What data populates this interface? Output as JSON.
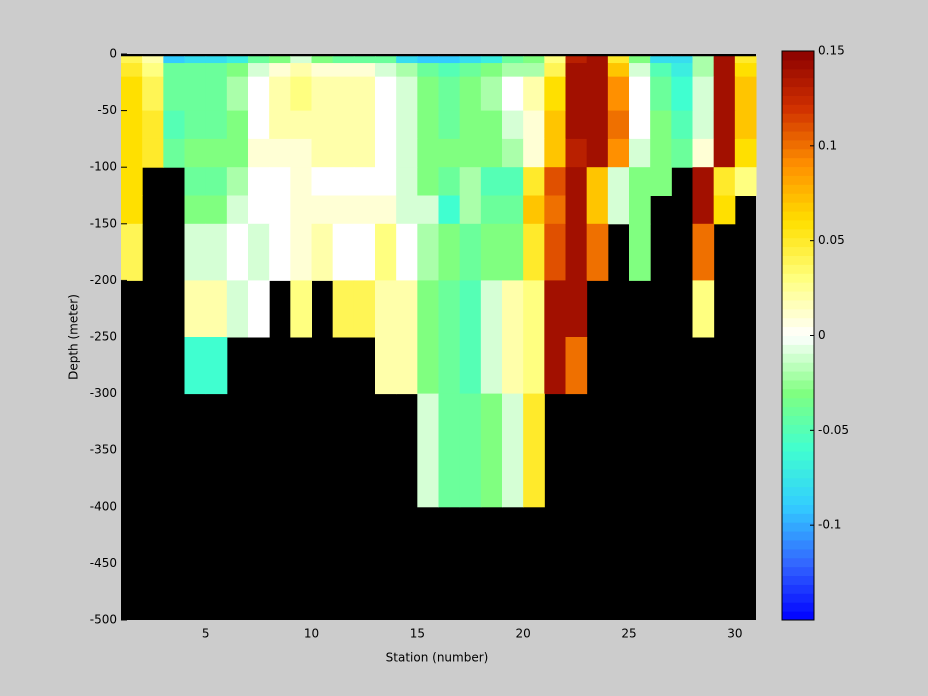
{
  "chart_data": {
    "type": "heatmap",
    "xlabel": "Station (number)",
    "ylabel": "Depth (meter)",
    "x": [
      1,
      2,
      3,
      4,
      5,
      6,
      7,
      8,
      9,
      10,
      11,
      12,
      13,
      14,
      15,
      16,
      17,
      18,
      19,
      20,
      21,
      22,
      23,
      24,
      25,
      26,
      27,
      28,
      29,
      30,
      31
    ],
    "y": [
      -2,
      -8,
      -20,
      -50,
      -75,
      -100,
      -125,
      -150,
      -200,
      -250,
      -300,
      -400
    ],
    "z": [
      [
        0.04,
        0.02,
        -0.09,
        -0.08,
        -0.08,
        -0.07,
        -0.04,
        -0.03,
        -0.01,
        -0.03,
        -0.04,
        -0.04,
        -0.04,
        -0.08,
        -0.09,
        -0.09,
        -0.08,
        -0.07,
        -0.04,
        -0.03,
        0.03,
        0.13,
        0.14,
        0.05,
        -0.03,
        -0.08,
        -0.08,
        -0.02,
        0.14,
        0.05
      ],
      [
        0.05,
        0.03,
        -0.04,
        -0.04,
        -0.04,
        -0.03,
        -0.01,
        0.01,
        0.02,
        0.01,
        0.01,
        0.01,
        -0.01,
        -0.02,
        -0.04,
        -0.05,
        -0.04,
        -0.03,
        -0.02,
        -0.02,
        0.04,
        0.14,
        0.14,
        0.07,
        -0.01,
        -0.05,
        -0.07,
        -0.02,
        0.14,
        0.06
      ],
      [
        0.06,
        0.04,
        -0.04,
        -0.04,
        -0.04,
        -0.02,
        0,
        0.02,
        0.03,
        0.02,
        0.02,
        0.02,
        0,
        -0.01,
        -0.03,
        -0.04,
        -0.03,
        -0.02,
        0,
        0.02,
        0.06,
        0.14,
        0.14,
        0.09,
        0,
        -0.04,
        -0.06,
        -0.01,
        0.14,
        0.07
      ],
      [
        0.06,
        0.05,
        -0.05,
        -0.04,
        -0.04,
        -0.03,
        0,
        0.02,
        0.02,
        0.02,
        0.02,
        0.02,
        0,
        -0.01,
        -0.03,
        -0.04,
        -0.03,
        -0.03,
        -0.01,
        0.01,
        0.07,
        0.14,
        0.14,
        0.1,
        0,
        -0.03,
        -0.05,
        -0.01,
        0.14,
        0.07
      ],
      [
        0.06,
        0.05,
        -0.04,
        -0.03,
        -0.03,
        -0.03,
        0.01,
        0.01,
        0.01,
        0.02,
        0.02,
        0.02,
        0,
        -0.01,
        -0.03,
        -0.03,
        -0.03,
        -0.03,
        -0.02,
        0.01,
        0.07,
        0.13,
        0.14,
        0.09,
        -0.01,
        -0.03,
        -0.04,
        0.01,
        0.14,
        0.06
      ],
      [
        0.06,
        null,
        null,
        -0.04,
        -0.04,
        -0.02,
        0,
        0,
        0.01,
        0,
        0,
        0,
        0,
        -0.01,
        -0.03,
        -0.04,
        -0.02,
        -0.05,
        -0.05,
        0.05,
        0.11,
        0.14,
        0.07,
        -0.01,
        -0.03,
        -0.03,
        null,
        0.14,
        0.05,
        0.03
      ],
      [
        0.06,
        null,
        null,
        -0.03,
        -0.03,
        -0.01,
        0,
        0,
        0.01,
        0.01,
        0.01,
        0.01,
        0.01,
        -0.01,
        -0.01,
        -0.06,
        -0.02,
        -0.04,
        -0.04,
        0.07,
        0.1,
        0.14,
        0.07,
        -0.01,
        -0.03,
        null,
        null,
        0.14,
        0.06,
        null
      ],
      [
        0.04,
        null,
        null,
        -0.01,
        -0.01,
        0,
        -0.01,
        0,
        0.01,
        0.02,
        0,
        0,
        0.03,
        0,
        -0.02,
        -0.03,
        -0.04,
        -0.03,
        -0.03,
        0.05,
        0.11,
        0.14,
        0.1,
        null,
        -0.03,
        null,
        null,
        0.1,
        null,
        null
      ],
      [
        null,
        null,
        null,
        0.02,
        0.02,
        -0.01,
        0,
        null,
        0.03,
        null,
        0.04,
        0.04,
        0.02,
        0.02,
        -0.03,
        -0.04,
        -0.05,
        -0.01,
        0.02,
        0.03,
        0.14,
        0.14,
        null,
        null,
        null,
        null,
        null,
        0.03,
        null,
        null
      ],
      [
        null,
        null,
        null,
        -0.06,
        -0.06,
        null,
        null,
        null,
        null,
        null,
        null,
        null,
        0.02,
        0.02,
        -0.03,
        -0.04,
        -0.05,
        -0.01,
        0.02,
        0.03,
        0.14,
        0.1,
        null,
        null,
        null,
        null,
        null,
        null,
        null,
        null
      ],
      [
        null,
        null,
        null,
        null,
        null,
        null,
        null,
        null,
        null,
        null,
        null,
        null,
        null,
        null,
        -0.01,
        -0.04,
        -0.04,
        -0.03,
        -0.01,
        0.05,
        null,
        null,
        null,
        null,
        null,
        null,
        null,
        null,
        null,
        null
      ]
    ],
    "xlim": [
      1,
      31
    ],
    "ylim": [
      -500,
      0
    ],
    "xticks": [
      5,
      10,
      15,
      20,
      25,
      30
    ],
    "yticks": [
      0,
      -50,
      -100,
      -150,
      -200,
      -250,
      -300,
      -350,
      -400,
      -450,
      -500
    ],
    "clim": [
      -0.15,
      0.15
    ],
    "cticks": [
      0.15,
      0.1,
      0.05,
      0,
      -0.05,
      -0.1
    ],
    "colormap": [
      "#0000ff",
      "#3366ff",
      "#33ccff",
      "#40ffd0",
      "#80ff80",
      "#ffffff",
      "#ffff80",
      "#ffe000",
      "#ff9000",
      "#d03000",
      "#8b0000"
    ],
    "background": "#000000"
  }
}
